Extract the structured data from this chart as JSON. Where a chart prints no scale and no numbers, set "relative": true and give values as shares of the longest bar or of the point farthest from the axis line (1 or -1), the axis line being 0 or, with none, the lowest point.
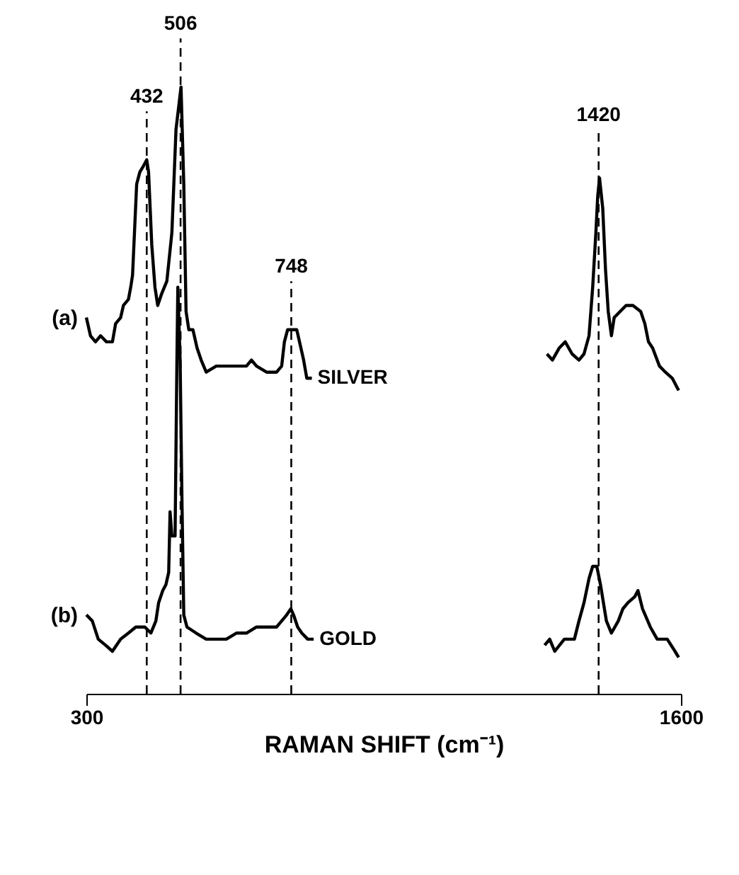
{
  "chart_data": {
    "type": "line",
    "relative": true,
    "xlabel": "RAMAN SHIFT (cm⁻¹)",
    "xlim": [
      300,
      1600
    ],
    "xticks": [
      300,
      {
        "value": 1600,
        "label": "1600"
      }
    ],
    "grid": false,
    "legend": false,
    "marker": "none",
    "line_style": "solid",
    "annotations": [
      "(a)",
      "(b)"
    ],
    "ref_lines": [
      {
        "axis": "x",
        "value": 432,
        "label": "432",
        "line_style": "dashed"
      },
      {
        "axis": "x",
        "value": 506,
        "label": "506",
        "line_style": "dashed"
      },
      {
        "axis": "x",
        "value": 748,
        "label": "748",
        "line_style": "dashed"
      },
      {
        "axis": "x",
        "value": 1420,
        "label": "1420",
        "line_style": "dashed"
      }
    ],
    "series": [
      {
        "name": "SILVER",
        "color": "#000000",
        "x": [
          300,
          309,
          320,
          331,
          344,
          357,
          364,
          375,
          381,
          392,
          397,
          401,
          410,
          417,
          425,
          432,
          436,
          443,
          450,
          456,
          465,
          476,
          487,
          496,
          507,
          513,
          518,
          524,
          533,
          542,
          551,
          562,
          584,
          606,
          628,
          650,
          661,
          672,
          694,
          716,
          727,
          733,
          740,
          749,
          760,
          766,
          775,
          782,
          793,
          1050,
          1307,
          1319,
          1334,
          1347,
          1362,
          1377,
          1388,
          1399,
          1407,
          1414,
          1418,
          1422,
          1429,
          1435,
          1441,
          1448,
          1454,
          1467,
          1480,
          1495,
          1512,
          1521,
          1529,
          1538,
          1553,
          1566,
          1581,
          1595
        ],
        "values": [
          0.62,
          0.59,
          0.58,
          0.59,
          0.58,
          0.58,
          0.61,
          0.62,
          0.64,
          0.65,
          0.67,
          0.69,
          0.84,
          0.86,
          0.87,
          0.88,
          0.86,
          0.74,
          0.67,
          0.64,
          0.66,
          0.68,
          0.76,
          0.93,
          1.0,
          0.84,
          0.63,
          0.6,
          0.6,
          0.57,
          0.55,
          0.53,
          0.54,
          0.54,
          0.54,
          0.54,
          0.55,
          0.54,
          0.53,
          0.53,
          0.54,
          0.58,
          0.6,
          0.6,
          0.6,
          0.58,
          0.55,
          0.52,
          0.52,
          null,
          0.56,
          0.55,
          0.57,
          0.58,
          0.56,
          0.55,
          0.56,
          0.59,
          0.67,
          0.76,
          0.82,
          0.85,
          0.8,
          0.7,
          0.63,
          0.59,
          0.62,
          0.63,
          0.64,
          0.64,
          0.63,
          0.61,
          0.58,
          0.57,
          0.54,
          0.53,
          0.52,
          0.5
        ]
      },
      {
        "name": "GOLD",
        "color": "#000000",
        "x": [
          300,
          313,
          326,
          342,
          357,
          375,
          392,
          408,
          428,
          441,
          452,
          458,
          467,
          474,
          480,
          483,
          487,
          494,
          498,
          500,
          505,
          509,
          513,
          520,
          540,
          562,
          584,
          606,
          628,
          650,
          672,
          694,
          716,
          738,
          747,
          753,
          762,
          771,
          784,
          797,
          1050,
          1302,
          1313,
          1324,
          1345,
          1367,
          1377,
          1388,
          1399,
          1407,
          1416,
          1424,
          1437,
          1448,
          1463,
          1473,
          1484,
          1499,
          1506,
          1516,
          1533,
          1548,
          1570,
          1587,
          1595
        ],
        "values": [
          0.13,
          0.12,
          0.09,
          0.08,
          0.07,
          0.09,
          0.1,
          0.11,
          0.11,
          0.1,
          0.12,
          0.15,
          0.17,
          0.18,
          0.2,
          0.3,
          0.26,
          0.26,
          0.55,
          0.67,
          0.55,
          0.32,
          0.13,
          0.11,
          0.1,
          0.09,
          0.09,
          0.09,
          0.1,
          0.1,
          0.11,
          0.11,
          0.11,
          0.13,
          0.14,
          0.13,
          0.11,
          0.1,
          0.09,
          0.09,
          null,
          0.08,
          0.09,
          0.07,
          0.09,
          0.09,
          0.12,
          0.15,
          0.19,
          0.21,
          0.21,
          0.18,
          0.12,
          0.1,
          0.12,
          0.14,
          0.15,
          0.16,
          0.17,
          0.14,
          0.11,
          0.09,
          0.09,
          0.07,
          0.06
        ]
      }
    ]
  }
}
